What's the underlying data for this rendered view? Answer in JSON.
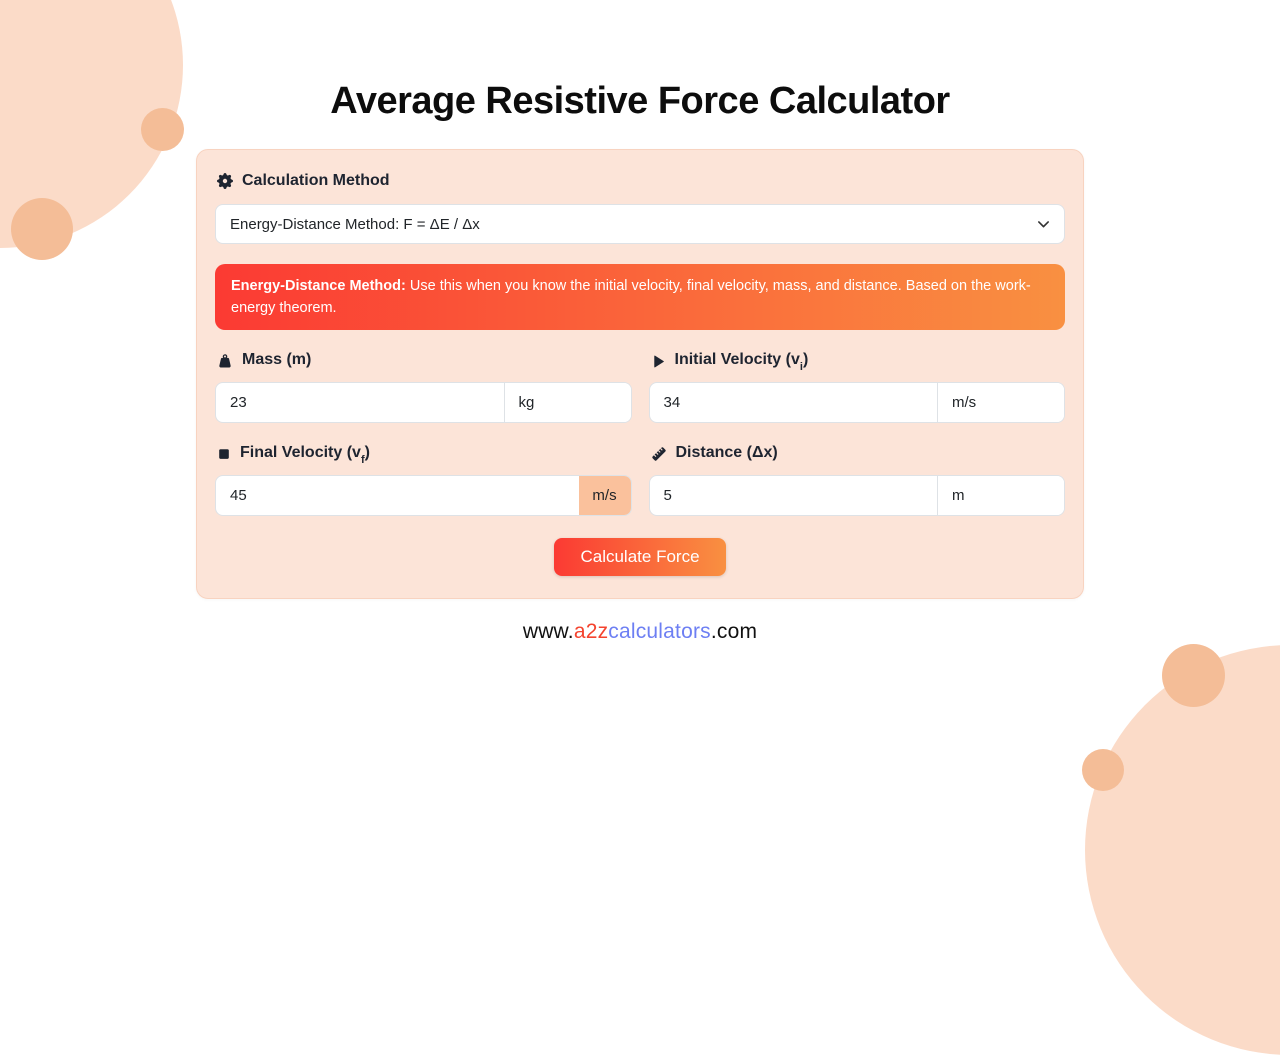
{
  "title": "Average Resistive Force Calculator",
  "colors": {
    "accent_gradient_start": "#fb3a33",
    "accent_gradient_end": "#f99041",
    "card_bg": "#fce4d8",
    "unit_addon_bg": "#fac19c",
    "decor_light": "#fbdbc8",
    "decor_mid": "#f4bd97",
    "footer_red": "#f4432e",
    "footer_blue": "#6d7ff3"
  },
  "calculator": {
    "section_label": "Calculation Method",
    "method_select": {
      "value": "Energy-Distance Method: F = ΔE / Δx"
    },
    "info_box": {
      "title": "Energy-Distance Method:",
      "text": "Use this when you know the initial velocity, final velocity, mass, and distance. Based on the work-energy theorem."
    },
    "fields": [
      {
        "name": "mass",
        "icon": "weight-icon",
        "label_pre": "Mass (m)",
        "label_sub": "",
        "label_post": "",
        "value": "23",
        "unit": "kg",
        "unit_control": "select"
      },
      {
        "name": "initial-velocity",
        "icon": "play-icon",
        "label_pre": "Initial Velocity (v",
        "label_sub": "i",
        "label_post": ")",
        "value": "34",
        "unit": "m/s",
        "unit_control": "select"
      },
      {
        "name": "final-velocity",
        "icon": "stop-icon",
        "label_pre": "Final Velocity (v",
        "label_sub": "f",
        "label_post": ")",
        "value": "45",
        "unit": "m/s",
        "unit_control": "addon"
      },
      {
        "name": "distance",
        "icon": "ruler-icon",
        "label_pre": "Distance (Δx)",
        "label_sub": "",
        "label_post": "",
        "value": "5",
        "unit": "m",
        "unit_control": "select"
      }
    ],
    "calculate_button": "Calculate Force"
  },
  "footer": {
    "www": "www.",
    "a2z": "a2z",
    "calculators": "calculators",
    "com": ".com"
  }
}
